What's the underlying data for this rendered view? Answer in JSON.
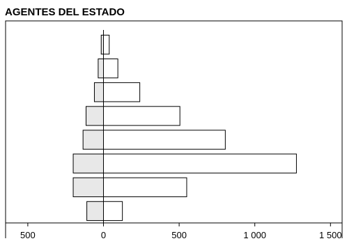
{
  "chart_data": {
    "type": "bar",
    "orientation": "horizontal",
    "layout": "diverging",
    "title": "AGENTES DEL ESTADO",
    "xlabel": "",
    "ylabel": "",
    "xlim": [
      -500,
      1500
    ],
    "x_ticks": [
      -500,
      0,
      500,
      1000,
      1500
    ],
    "x_tick_labels": [
      "500",
      "0",
      "500",
      "1 000",
      "1 500"
    ],
    "grid": false,
    "legend": "none",
    "categories": [
      "",
      "",
      "",
      "",
      "",
      "",
      "",
      ""
    ],
    "series": [
      {
        "side": "left",
        "color": "#e8e8e8",
        "values": [
          15,
          35,
          60,
          115,
          135,
          200,
          200,
          110
        ]
      },
      {
        "side": "right",
        "color": "#ffffff",
        "values": [
          38,
          95,
          240,
          505,
          805,
          1275,
          550,
          125
        ]
      }
    ]
  }
}
